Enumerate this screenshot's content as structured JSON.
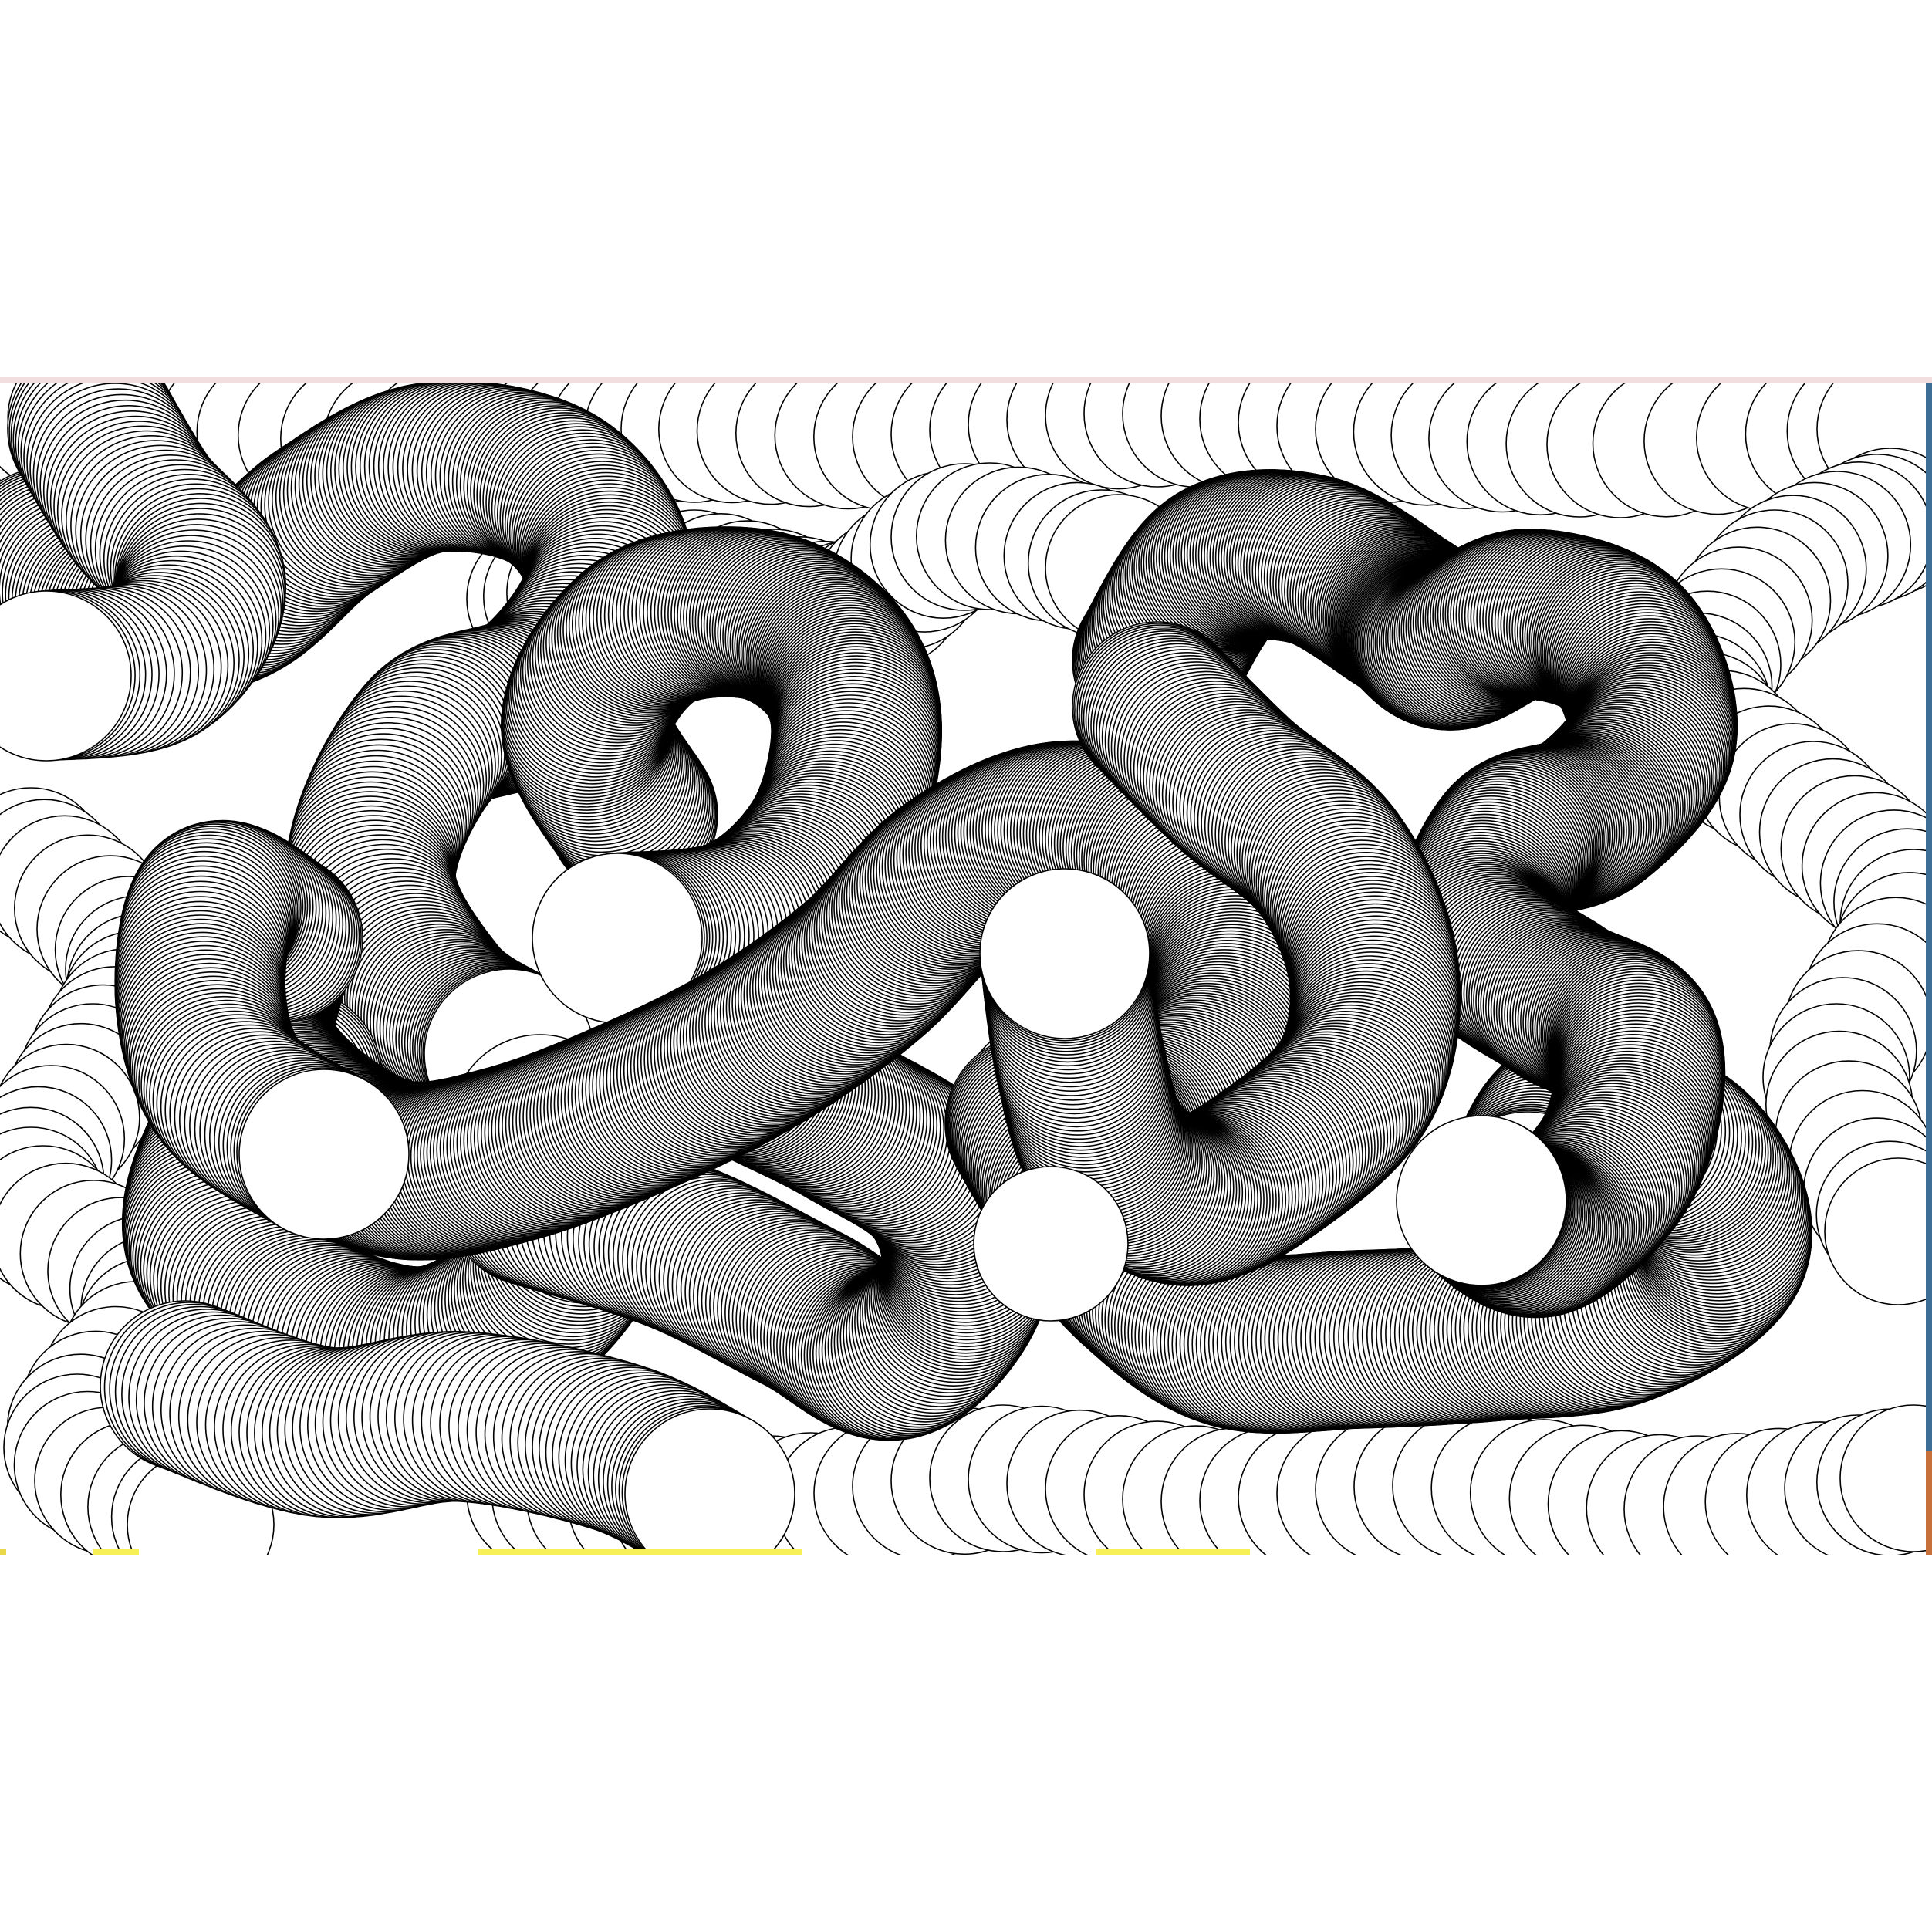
{
  "artwork": {
    "description_colors": {
      "stroke": "#000000",
      "fill": "#ffffff",
      "background": "#ffffff"
    },
    "window_colors": {
      "top_strip": "#f2dede",
      "right_edge": "#3d6f96",
      "right_edge_accent": "#c8703a",
      "bottom_peek": "#f7f056"
    }
  }
}
